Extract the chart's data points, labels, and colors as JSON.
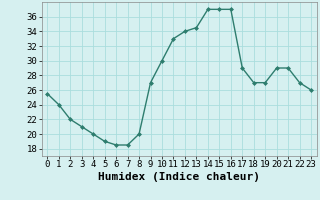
{
  "x": [
    0,
    1,
    2,
    3,
    4,
    5,
    6,
    7,
    8,
    9,
    10,
    11,
    12,
    13,
    14,
    15,
    16,
    17,
    18,
    19,
    20,
    21,
    22,
    23
  ],
  "y": [
    25.5,
    24.0,
    22.0,
    21.0,
    20.0,
    19.0,
    18.5,
    18.5,
    20.0,
    27.0,
    30.0,
    33.0,
    34.0,
    34.5,
    37.0,
    37.0,
    37.0,
    29.0,
    27.0,
    27.0,
    29.0,
    29.0,
    27.0,
    26.0
  ],
  "xlabel": "Humidex (Indice chaleur)",
  "ylim": [
    17,
    38
  ],
  "xlim": [
    -0.5,
    23.5
  ],
  "yticks": [
    18,
    20,
    22,
    24,
    26,
    28,
    30,
    32,
    34,
    36
  ],
  "xticks": [
    0,
    1,
    2,
    3,
    4,
    5,
    6,
    7,
    8,
    9,
    10,
    11,
    12,
    13,
    14,
    15,
    16,
    17,
    18,
    19,
    20,
    21,
    22,
    23
  ],
  "line_color": "#2e7d6e",
  "marker_color": "#2e7d6e",
  "bg_color": "#d6f0f0",
  "grid_color": "#aadddd",
  "xlabel_fontsize": 8,
  "tick_fontsize": 6.5
}
